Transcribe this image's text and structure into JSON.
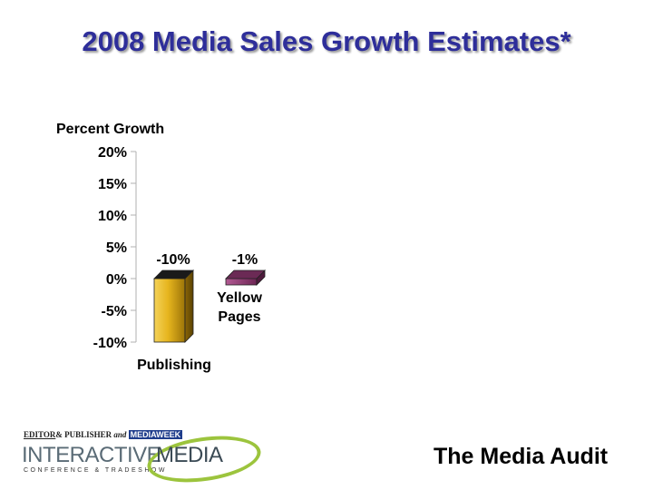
{
  "header": {
    "title": "2008 Media Sales Growth Estimates*"
  },
  "chart_data": {
    "type": "bar",
    "title": "2008 Media Sales Growth Estimates*",
    "ylabel": "Percent Growth",
    "xlabel": "",
    "ylim": [
      -10,
      20
    ],
    "y_ticks": [
      20,
      15,
      10,
      5,
      0,
      -5,
      -10
    ],
    "y_tick_labels": [
      "20%",
      "15%",
      "10%",
      "5%",
      "0%",
      "-5%",
      "-10%"
    ],
    "categories": [
      "Publishing",
      "Yellow Pages"
    ],
    "category_lines": [
      [
        "Publishing"
      ],
      [
        "Yellow",
        "Pages"
      ]
    ],
    "values": [
      -10,
      -1
    ],
    "data_labels": [
      "-10%",
      "-1%"
    ],
    "colors": [
      "#e8b820",
      "#9a3a78"
    ]
  },
  "footer": {
    "brand_editor": "EDITOR",
    "brand_and": "&",
    "brand_publisher": "PUBLISHER",
    "brand_and2": "and",
    "brand_mediaweek": "MEDIAWEEK",
    "brand_interactive": "INTERACTIVE",
    "brand_media": "MEDIA",
    "brand_subtitle": "CONFERENCE & TRADESHOW",
    "source": "The Media Audit"
  }
}
